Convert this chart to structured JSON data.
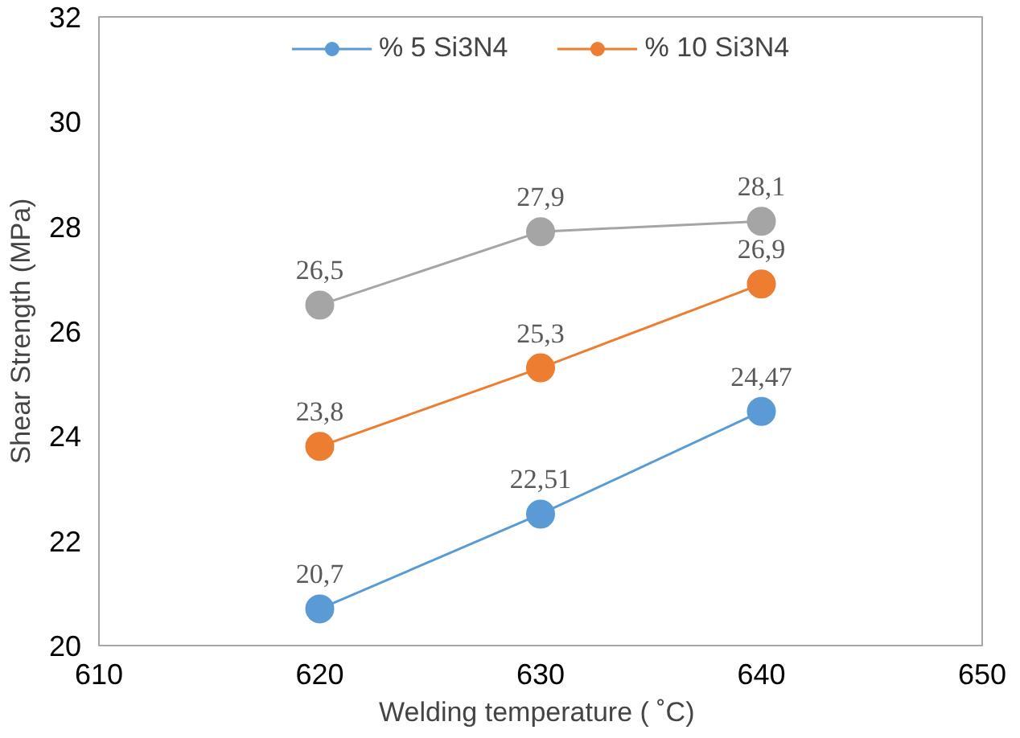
{
  "chart_data": {
    "type": "line",
    "xlabel": "Welding  temperature ( ˚C)",
    "ylabel": "Shear Strength (MPa)",
    "x": [
      620,
      630,
      640
    ],
    "series": [
      {
        "name": "% 5 Si3N4",
        "color": "#5b9bd5",
        "values": [
          20.7,
          22.51,
          24.47
        ],
        "value_labels": [
          "20,7",
          "22,51",
          "24,47"
        ]
      },
      {
        "name": "% 10 Si3N4",
        "color": "#ed7d31",
        "values": [
          23.8,
          25.3,
          26.9
        ],
        "value_labels": [
          "23,8",
          "25,3",
          "26,9"
        ]
      },
      {
        "color": "#a5a5a5",
        "values": [
          26.5,
          27.9,
          28.1
        ],
        "value_labels": [
          "26,5",
          "27,9",
          "28,1"
        ]
      }
    ],
    "xlim": [
      610,
      650
    ],
    "xticks": [
      610,
      620,
      630,
      640,
      650
    ],
    "ylim": [
      20,
      32
    ],
    "yticks": [
      20,
      22,
      24,
      26,
      28,
      30,
      32
    ],
    "grid": false,
    "legend": "top",
    "marker": "circle",
    "line_style": "solid"
  }
}
